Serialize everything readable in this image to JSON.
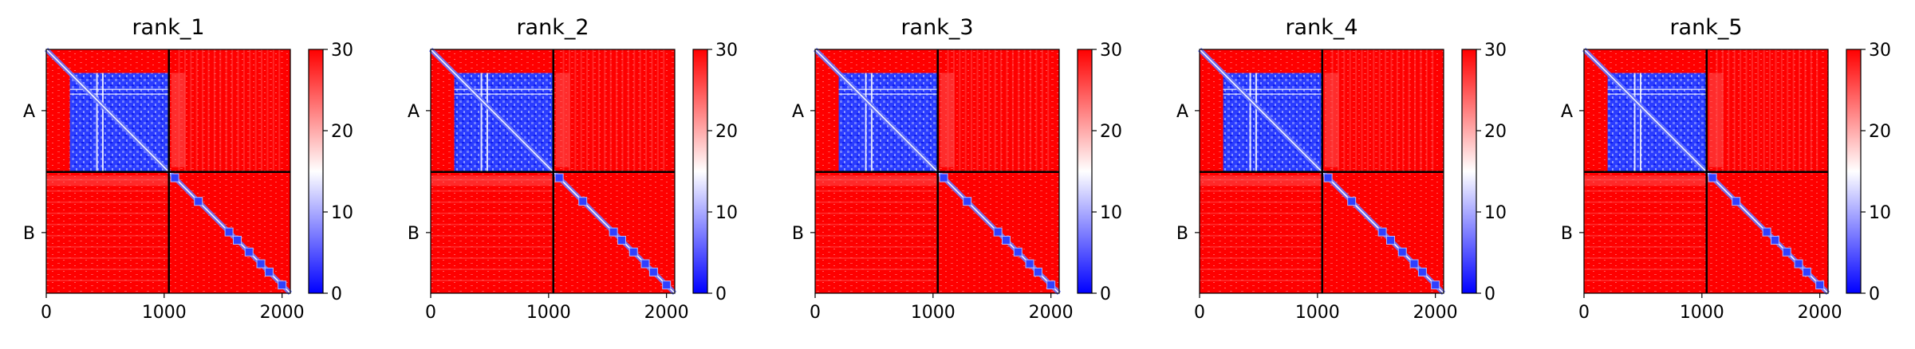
{
  "chart_data": [
    {
      "type": "heatmap",
      "title": "rank_1",
      "chains": [
        "A",
        "B"
      ],
      "chain_boundary": 1040,
      "length": 2070,
      "x_ticks": [
        0,
        1000,
        2000
      ],
      "colorbar_ticks": [
        0,
        10,
        20,
        30
      ],
      "value_range": [
        0,
        30
      ],
      "colormap": [
        "#0000ff",
        "#ffffff",
        "#ff0000"
      ],
      "low_error_blocks": [
        [
          200,
          1040,
          200,
          1040
        ]
      ]
    },
    {
      "type": "heatmap",
      "title": "rank_2",
      "chains": [
        "A",
        "B"
      ],
      "chain_boundary": 1040,
      "length": 2070,
      "x_ticks": [
        0,
        1000,
        2000
      ],
      "colorbar_ticks": [
        0,
        10,
        20,
        30
      ],
      "value_range": [
        0,
        30
      ],
      "colormap": [
        "#0000ff",
        "#ffffff",
        "#ff0000"
      ],
      "low_error_blocks": [
        [
          200,
          1040,
          200,
          1040
        ]
      ]
    },
    {
      "type": "heatmap",
      "title": "rank_3",
      "chains": [
        "A",
        "B"
      ],
      "chain_boundary": 1040,
      "length": 2070,
      "x_ticks": [
        0,
        1000,
        2000
      ],
      "colorbar_ticks": [
        0,
        10,
        20,
        30
      ],
      "value_range": [
        0,
        30
      ],
      "colormap": [
        "#0000ff",
        "#ffffff",
        "#ff0000"
      ],
      "low_error_blocks": [
        [
          200,
          1040,
          200,
          1040
        ]
      ]
    },
    {
      "type": "heatmap",
      "title": "rank_4",
      "chains": [
        "A",
        "B"
      ],
      "chain_boundary": 1040,
      "length": 2070,
      "x_ticks": [
        0,
        1000,
        2000
      ],
      "colorbar_ticks": [
        0,
        10,
        20,
        30
      ],
      "value_range": [
        0,
        30
      ],
      "colormap": [
        "#0000ff",
        "#ffffff",
        "#ff0000"
      ],
      "low_error_blocks": [
        [
          200,
          1040,
          200,
          1040
        ]
      ]
    },
    {
      "type": "heatmap",
      "title": "rank_5",
      "chains": [
        "A",
        "B"
      ],
      "chain_boundary": 1040,
      "length": 2070,
      "x_ticks": [
        0,
        1000,
        2000
      ],
      "colorbar_ticks": [
        0,
        10,
        20,
        30
      ],
      "value_range": [
        0,
        30
      ],
      "colormap": [
        "#0000ff",
        "#ffffff",
        "#ff0000"
      ],
      "low_error_blocks": [
        [
          200,
          1040,
          200,
          1040
        ]
      ]
    }
  ]
}
